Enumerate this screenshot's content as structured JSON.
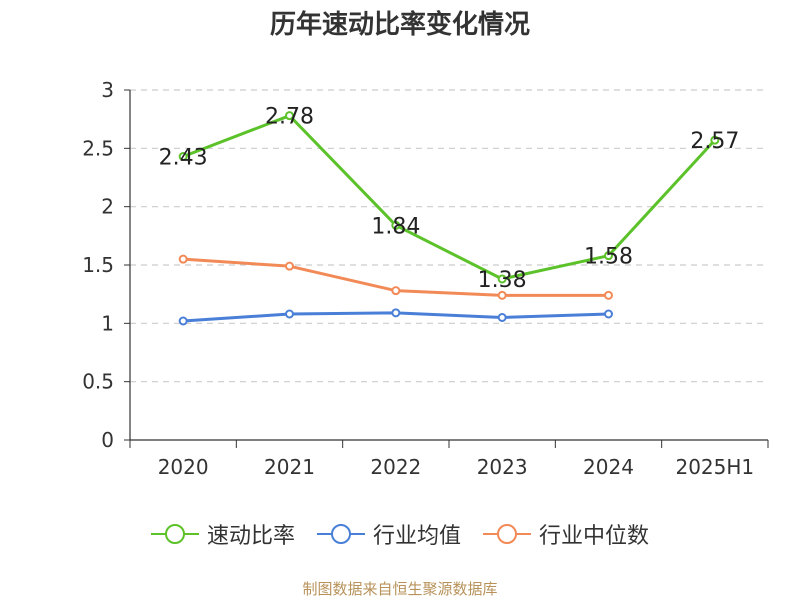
{
  "chart_data": {
    "type": "line",
    "title": "历年速动比率变化情况",
    "categories": [
      "2020",
      "2021",
      "2022",
      "2023",
      "2024",
      "2025H1"
    ],
    "ylim": [
      0,
      3
    ],
    "yticks": [
      "0",
      "0.5",
      "1",
      "1.5",
      "2",
      "2.5",
      "3"
    ],
    "grid": true,
    "legend_position": "bottom",
    "series": [
      {
        "name": "速动比率",
        "color": "#5cc22a",
        "values": [
          2.43,
          2.78,
          1.84,
          1.38,
          1.58,
          2.57
        ],
        "labels": [
          "2.43",
          "2.78",
          "1.84",
          "1.38",
          "1.58",
          "2.57"
        ],
        "show_labels": true
      },
      {
        "name": "行业均值",
        "color": "#4a7fd8",
        "values": [
          1.02,
          1.08,
          1.09,
          1.05,
          1.08,
          null
        ],
        "show_labels": false
      },
      {
        "name": "行业中位数",
        "color": "#f28a57",
        "values": [
          1.55,
          1.49,
          1.28,
          1.24,
          1.24,
          null
        ],
        "show_labels": false
      }
    ]
  },
  "footer": {
    "source": "制图数据来自恒生聚源数据库"
  }
}
